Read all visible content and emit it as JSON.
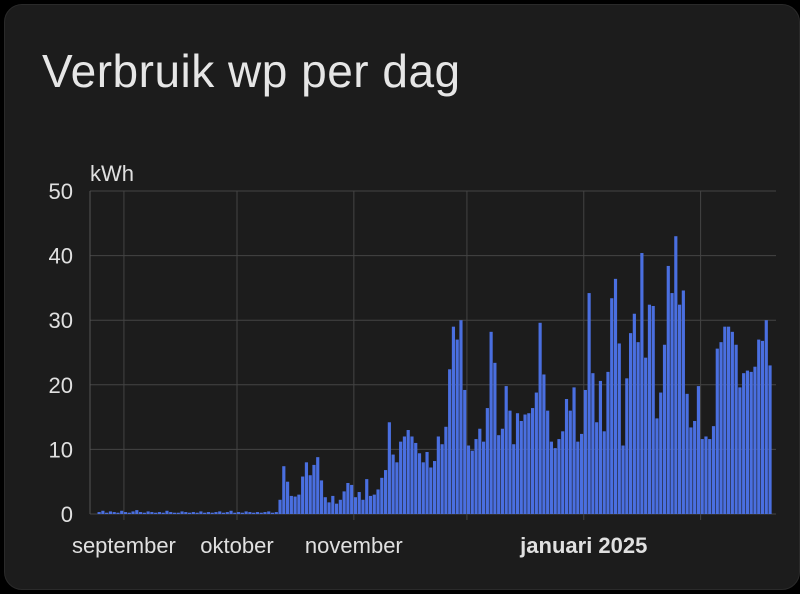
{
  "card": {
    "title": "Verbruik wp per dag"
  },
  "chart_data": {
    "type": "bar",
    "title": "Verbruik wp per dag",
    "ylabel": "kWh",
    "xlabel": "",
    "ylim": [
      0,
      50
    ],
    "yticks": [
      0,
      10,
      20,
      30,
      40,
      50
    ],
    "grid": true,
    "bar_color": "#4a6fe0",
    "x_range": [
      "2024-08-23",
      "2025-02-21"
    ],
    "xticks": [
      {
        "date": "2024-09-01",
        "label": "september",
        "bold": false
      },
      {
        "date": "2024-10-01",
        "label": "oktober",
        "bold": false
      },
      {
        "date": "2024-11-01",
        "label": "november",
        "bold": false
      },
      {
        "date": "2024-12-01",
        "label": "",
        "bold": false
      },
      {
        "date": "2025-01-01",
        "label": "januari 2025",
        "bold": true
      },
      {
        "date": "2025-02-01",
        "label": "",
        "bold": false
      }
    ],
    "start_date": "2024-08-25",
    "values": [
      0.3,
      0.5,
      0.2,
      0.4,
      0.3,
      0.2,
      0.5,
      0.3,
      0.2,
      0.4,
      0.6,
      0.3,
      0.2,
      0.4,
      0.3,
      0.2,
      0.3,
      0.2,
      0.5,
      0.3,
      0.2,
      0.2,
      0.4,
      0.3,
      0.2,
      0.3,
      0.2,
      0.4,
      0.2,
      0.3,
      0.2,
      0.3,
      0.4,
      0.2,
      0.3,
      0.5,
      0.2,
      0.3,
      0.2,
      0.4,
      0.3,
      0.2,
      0.3,
      0.2,
      0.3,
      0.4,
      0.2,
      0.3,
      2.2,
      7.4,
      5.0,
      2.8,
      2.7,
      3.0,
      5.8,
      8.0,
      6.0,
      7.6,
      8.8,
      5.2,
      2.6,
      1.8,
      2.8,
      1.6,
      2.2,
      3.5,
      4.8,
      4.5,
      2.6,
      3.4,
      2.2,
      5.4,
      2.8,
      3.0,
      3.8,
      5.6,
      6.8,
      14.2,
      9.2,
      8.0,
      11.2,
      12.0,
      13.0,
      12.0,
      11.0,
      9.4,
      8.0,
      9.6,
      7.2,
      8.2,
      12.0,
      10.8,
      13.5,
      22.4,
      29.0,
      27.0,
      30.0,
      19.2,
      10.6,
      9.8,
      11.6,
      13.2,
      11.2,
      16.4,
      28.2,
      23.4,
      12.2,
      13.2,
      19.8,
      16.0,
      10.8,
      15.6,
      14.4,
      15.4,
      15.6,
      16.4,
      18.8,
      29.6,
      21.6,
      16.0,
      11.2,
      10.2,
      11.6,
      12.8,
      17.8,
      16.0,
      19.6,
      11.2,
      12.4,
      19.2,
      34.2,
      21.8,
      14.2,
      20.6,
      12.8,
      22.0,
      33.4,
      36.4,
      26.4,
      10.6,
      21.0,
      28.0,
      31.0,
      26.6,
      40.4,
      24.2,
      32.4,
      32.2,
      14.8,
      18.8,
      26.2,
      38.4,
      34.2,
      43.0,
      32.4,
      34.6,
      18.6,
      13.4,
      14.4,
      19.8,
      11.6,
      12.0,
      11.6,
      13.6,
      25.6,
      26.6,
      29.0,
      29.0,
      28.2,
      26.2,
      19.6,
      21.8,
      22.2,
      22.0,
      22.8,
      27.0,
      26.8,
      30.0,
      23.0
    ]
  }
}
